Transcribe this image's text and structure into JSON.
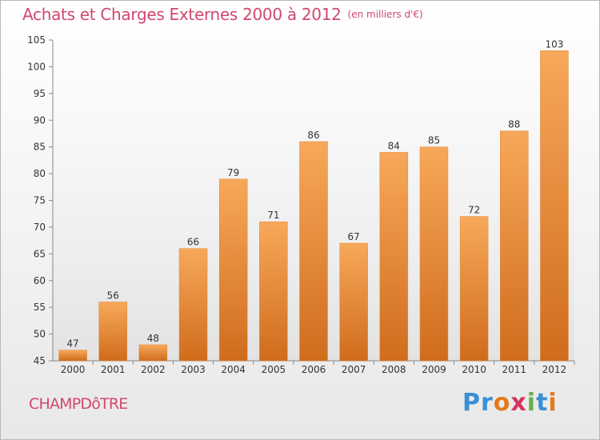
{
  "header": {
    "title": "Achats et Charges Externes 2000 à 2012",
    "unit": "(en milliers d'€)"
  },
  "footer": {
    "commune": "CHAMPDôTRE",
    "brand": "Proxiti"
  },
  "colors": {
    "title": "#d0486e",
    "bar_light": "#f7a85a",
    "bar_dark": "#d06c1c",
    "brand_letters": [
      "#3a8fd6",
      "#3a8fd6",
      "#e37a1e",
      "#d6335e",
      "#6ab04c",
      "#3a8fd6",
      "#e37a1e"
    ]
  },
  "chart_data": {
    "type": "bar",
    "title": "Achats et Charges Externes 2000 à 2012",
    "subtitle": "(en milliers d'€)",
    "categories": [
      "2000",
      "2001",
      "2002",
      "2003",
      "2004",
      "2005",
      "2006",
      "2007",
      "2008",
      "2009",
      "2010",
      "2011",
      "2012"
    ],
    "values": [
      47,
      56,
      48,
      66,
      79,
      71,
      86,
      67,
      84,
      85,
      72,
      88,
      103
    ],
    "ylim": [
      45,
      105
    ],
    "yticks": [
      45,
      50,
      55,
      60,
      65,
      70,
      75,
      80,
      85,
      90,
      95,
      100,
      105
    ],
    "grid": false,
    "data_labels": true
  }
}
